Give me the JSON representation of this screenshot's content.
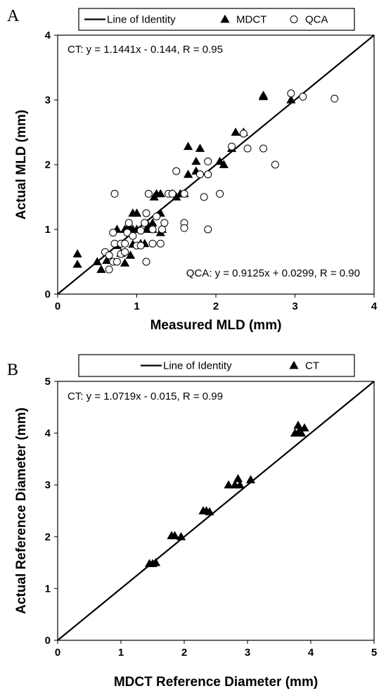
{
  "chart_data": [
    {
      "type": "scatter",
      "panel": "A",
      "xlabel": "Measured MLD (mm)",
      "ylabel": "Actual MLD (mm)",
      "xlim": [
        0,
        4
      ],
      "ylim": [
        0,
        4
      ],
      "xticks": [
        "0",
        "1",
        "2",
        "3",
        "4"
      ],
      "yticks": [
        "0",
        "1",
        "2",
        "3",
        "4"
      ],
      "legend_position": "top",
      "legend": [
        "Line of Identity",
        "MDCT",
        "QCA"
      ],
      "annotations": [
        "CT:  y = 1.1441x - 0.144, R = 0.95",
        "QCA: y = 0.9125x + 0.0299, R = 0.90"
      ],
      "series": [
        {
          "name": "Line of Identity",
          "kind": "line",
          "x": [
            0,
            4
          ],
          "y": [
            0,
            4
          ]
        },
        {
          "name": "MDCT",
          "kind": "triangle",
          "points": [
            [
              0.25,
              0.62
            ],
            [
              0.25,
              0.46
            ],
            [
              0.5,
              0.5
            ],
            [
              0.55,
              0.38
            ],
            [
              0.62,
              0.52
            ],
            [
              0.75,
              0.75
            ],
            [
              0.8,
              0.63
            ],
            [
              0.85,
              0.48
            ],
            [
              0.92,
              0.6
            ],
            [
              0.95,
              0.77
            ],
            [
              0.75,
              1.0
            ],
            [
              0.85,
              1.0
            ],
            [
              0.9,
              1.05
            ],
            [
              0.95,
              1.0
            ],
            [
              0.95,
              1.25
            ],
            [
              1.0,
              1.25
            ],
            [
              1.0,
              1.0
            ],
            [
              1.05,
              0.78
            ],
            [
              1.1,
              0.78
            ],
            [
              1.12,
              1.0
            ],
            [
              1.15,
              1.05
            ],
            [
              1.2,
              1.1
            ],
            [
              1.2,
              1.0
            ],
            [
              1.22,
              1.5
            ],
            [
              1.25,
              1.55
            ],
            [
              1.3,
              1.55
            ],
            [
              1.3,
              1.25
            ],
            [
              1.32,
              1.0
            ],
            [
              1.3,
              0.95
            ],
            [
              1.45,
              1.55
            ],
            [
              1.5,
              1.5
            ],
            [
              1.55,
              1.55
            ],
            [
              1.6,
              1.55
            ],
            [
              1.65,
              2.28
            ],
            [
              1.65,
              1.85
            ],
            [
              1.75,
              1.9
            ],
            [
              1.8,
              2.25
            ],
            [
              1.75,
              2.05
            ],
            [
              2.05,
              2.05
            ],
            [
              2.1,
              2.0
            ],
            [
              2.2,
              2.25
            ],
            [
              2.25,
              2.5
            ],
            [
              2.35,
              2.5
            ],
            [
              2.6,
              3.07
            ],
            [
              2.6,
              3.05
            ],
            [
              2.95,
              3.0
            ]
          ]
        },
        {
          "name": "QCA",
          "kind": "circle",
          "points": [
            [
              0.65,
              0.38
            ],
            [
              0.7,
              0.5
            ],
            [
              0.75,
              0.5
            ],
            [
              0.6,
              0.65
            ],
            [
              0.65,
              0.6
            ],
            [
              0.7,
              0.95
            ],
            [
              0.72,
              0.78
            ],
            [
              0.8,
              0.62
            ],
            [
              0.85,
              0.65
            ],
            [
              0.8,
              0.78
            ],
            [
              0.85,
              0.78
            ],
            [
              0.88,
              0.95
            ],
            [
              0.9,
              1.1
            ],
            [
              0.72,
              1.55
            ],
            [
              0.95,
              0.9
            ],
            [
              1.0,
              0.75
            ],
            [
              1.05,
              0.75
            ],
            [
              1.05,
              0.98
            ],
            [
              1.1,
              1.1
            ],
            [
              1.12,
              0.5
            ],
            [
              1.15,
              1.55
            ],
            [
              1.12,
              1.25
            ],
            [
              1.2,
              1.0
            ],
            [
              1.2,
              0.78
            ],
            [
              1.25,
              1.2
            ],
            [
              1.3,
              0.78
            ],
            [
              1.32,
              1.0
            ],
            [
              1.35,
              1.1
            ],
            [
              1.4,
              1.55
            ],
            [
              1.45,
              1.55
            ],
            [
              1.5,
              1.9
            ],
            [
              1.6,
              1.55
            ],
            [
              1.6,
              1.1
            ],
            [
              1.6,
              1.02
            ],
            [
              1.8,
              1.85
            ],
            [
              1.85,
              1.5
            ],
            [
              1.9,
              1.85
            ],
            [
              1.9,
              2.05
            ],
            [
              1.9,
              1.0
            ],
            [
              2.05,
              1.55
            ],
            [
              2.2,
              2.28
            ],
            [
              2.35,
              2.48
            ],
            [
              2.4,
              2.25
            ],
            [
              2.6,
              2.25
            ],
            [
              2.75,
              2.0
            ],
            [
              2.95,
              3.1
            ],
            [
              3.1,
              3.05
            ],
            [
              3.5,
              3.02
            ]
          ]
        }
      ]
    },
    {
      "type": "scatter",
      "panel": "B",
      "xlabel": "MDCT Reference Diameter (mm)",
      "ylabel": "Actual Reference Diameter (mm)",
      "xlim": [
        0,
        5
      ],
      "ylim": [
        0,
        5
      ],
      "xticks": [
        "0",
        "1",
        "2",
        "3",
        "4",
        "5"
      ],
      "yticks": [
        "0",
        "1",
        "2",
        "3",
        "4",
        "5"
      ],
      "legend_position": "top",
      "legend": [
        "Line of Identity",
        "CT"
      ],
      "annotations": [
        "CT: y = 1.0719x - 0.015, R = 0.99"
      ],
      "series": [
        {
          "name": "Line of Identity",
          "kind": "line",
          "x": [
            0,
            5
          ],
          "y": [
            0,
            5
          ]
        },
        {
          "name": "CT",
          "kind": "triangle",
          "points": [
            [
              1.45,
              1.48
            ],
            [
              1.5,
              1.48
            ],
            [
              1.55,
              1.5
            ],
            [
              1.8,
              2.02
            ],
            [
              1.85,
              2.02
            ],
            [
              1.95,
              2.0
            ],
            [
              2.3,
              2.5
            ],
            [
              2.35,
              2.5
            ],
            [
              2.4,
              2.48
            ],
            [
              2.7,
              3.0
            ],
            [
              2.8,
              3.0
            ],
            [
              2.85,
              3.12
            ],
            [
              2.88,
              3.0
            ],
            [
              3.05,
              3.1
            ],
            [
              3.75,
              4.0
            ],
            [
              3.8,
              4.15
            ],
            [
              3.82,
              4.05
            ],
            [
              3.85,
              4.0
            ],
            [
              3.9,
              4.1
            ]
          ]
        }
      ]
    }
  ]
}
